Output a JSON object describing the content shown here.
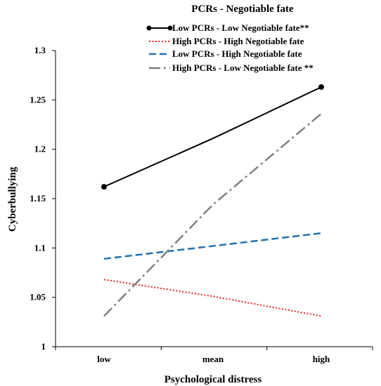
{
  "chart_data": {
    "type": "line",
    "title": "PCRs - Negotiable fate",
    "xlabel": "Psychological distress",
    "ylabel": "Cyberbullying",
    "categories": [
      "low",
      "mean",
      "high"
    ],
    "ylim": [
      1,
      1.3
    ],
    "yticks": [
      "1",
      "1.05",
      "1.1",
      "1.15",
      "1.2",
      "1.25",
      "1.3"
    ],
    "grid": false,
    "legend_position": "top",
    "series": [
      {
        "name": "Low PCRs - Low Negotiable fate**",
        "values": [
          1.162,
          1.211,
          1.263
        ],
        "color": "#000000",
        "style": "solid-markers"
      },
      {
        "name": "High PCRs - High Negotiable fate",
        "values": [
          1.068,
          1.051,
          1.031
        ],
        "color": "#e8221c",
        "style": "dotted"
      },
      {
        "name": "Low PCRs - High Negotiable fate",
        "values": [
          1.089,
          1.102,
          1.115
        ],
        "color": "#2270b0",
        "style": "dashed"
      },
      {
        "name": "High PCRs - Low Negotiable fate **",
        "values": [
          1.031,
          1.144,
          1.236
        ],
        "color": "#808080",
        "style": "dash-dot"
      }
    ]
  }
}
